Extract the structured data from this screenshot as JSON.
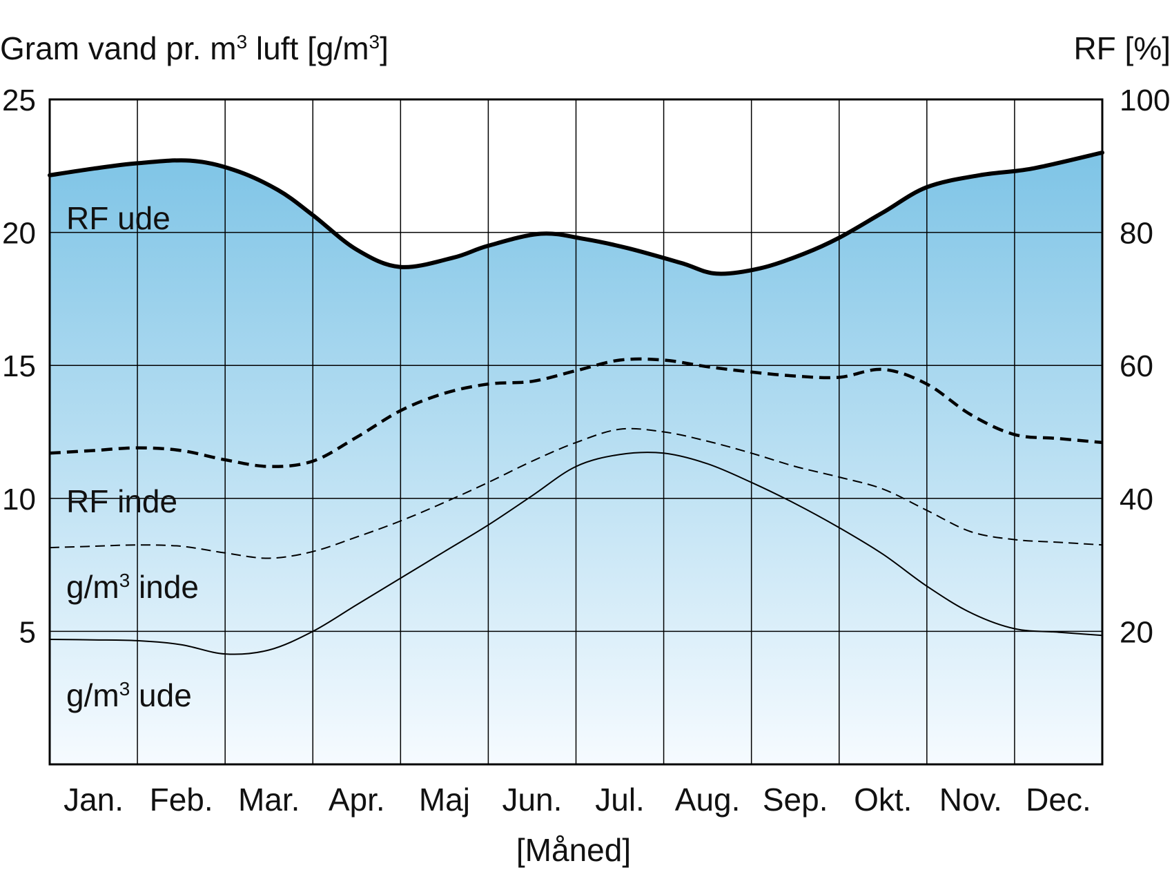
{
  "chart_data": {
    "type": "line",
    "left_axis_title": {
      "pre": "Gram vand pr. m",
      "sup1": "3",
      "mid": " luft [g/m",
      "sup2": "3",
      "post": "]"
    },
    "right_axis_title": "RF [%]",
    "xlabel": "[Måned]",
    "categories": [
      "Jan.",
      "Feb.",
      "Mar.",
      "Apr.",
      "Maj",
      "Jun.",
      "Jul.",
      "Aug.",
      "Sep.",
      "Okt.",
      "Nov.",
      "Dec."
    ],
    "left_axis": {
      "range": [
        0,
        25
      ],
      "ticks": [
        5,
        10,
        15,
        20,
        25
      ]
    },
    "right_axis": {
      "range": [
        0,
        100
      ],
      "ticks": [
        20,
        40,
        60,
        80,
        100
      ]
    },
    "grid": true,
    "area_fill": {
      "top_color": "#7ec4e6",
      "bottom_color": "#f6fbff"
    },
    "series": [
      {
        "name": "RF ude",
        "label_parts": {
          "pre": "RF ude"
        },
        "axis": "right",
        "style": "thick-solid",
        "points": [
          [
            0,
            88.6
          ],
          [
            0.5,
            89.6
          ],
          [
            1,
            90.4
          ],
          [
            1.6,
            90.8
          ],
          [
            2.1,
            89.4
          ],
          [
            2.6,
            86.4
          ],
          [
            3,
            82.6
          ],
          [
            3.5,
            77.4
          ],
          [
            4,
            74.8
          ],
          [
            4.6,
            76.2
          ],
          [
            5,
            78
          ],
          [
            5.6,
            79.8
          ],
          [
            6.1,
            79
          ],
          [
            6.6,
            77.6
          ],
          [
            7.2,
            75.4
          ],
          [
            7.6,
            73.8
          ],
          [
            8.1,
            74.6
          ],
          [
            8.6,
            76.8
          ],
          [
            9,
            79.2
          ],
          [
            9.5,
            83
          ],
          [
            10,
            86.8
          ],
          [
            10.6,
            88.6
          ],
          [
            11.2,
            89.6
          ],
          [
            12,
            92
          ]
        ]
      },
      {
        "name": "RF inde",
        "label_parts": {
          "pre": "RF inde"
        },
        "axis": "right",
        "style": "thick-dashed",
        "points": [
          [
            0,
            46.8
          ],
          [
            0.5,
            47.2
          ],
          [
            1,
            47.6
          ],
          [
            1.5,
            47.2
          ],
          [
            2,
            45.8
          ],
          [
            2.5,
            44.8
          ],
          [
            3,
            45.6
          ],
          [
            3.5,
            49.2
          ],
          [
            4,
            53.2
          ],
          [
            4.5,
            55.8
          ],
          [
            5,
            57.2
          ],
          [
            5.5,
            57.6
          ],
          [
            6,
            59.2
          ],
          [
            6.5,
            60.8
          ],
          [
            7,
            60.8
          ],
          [
            7.5,
            59.8
          ],
          [
            8,
            59
          ],
          [
            8.5,
            58.4
          ],
          [
            9,
            58.2
          ],
          [
            9.5,
            59.4
          ],
          [
            10,
            57.2
          ],
          [
            10.5,
            52.6
          ],
          [
            11,
            49.6
          ],
          [
            11.5,
            49
          ],
          [
            12,
            48.4
          ]
        ]
      },
      {
        "name": "g/m³ inde",
        "label_parts": {
          "pre": "g/m",
          "sup": "3",
          "post": " inde"
        },
        "axis": "left",
        "style": "thin-dashed",
        "points": [
          [
            0,
            8.15
          ],
          [
            0.5,
            8.2
          ],
          [
            1,
            8.25
          ],
          [
            1.5,
            8.2
          ],
          [
            2,
            7.95
          ],
          [
            2.5,
            7.75
          ],
          [
            3,
            8.0
          ],
          [
            3.5,
            8.55
          ],
          [
            4,
            9.15
          ],
          [
            4.5,
            9.85
          ],
          [
            5,
            10.6
          ],
          [
            5.5,
            11.4
          ],
          [
            6,
            12.1
          ],
          [
            6.5,
            12.6
          ],
          [
            7,
            12.5
          ],
          [
            7.5,
            12.15
          ],
          [
            8,
            11.7
          ],
          [
            8.5,
            11.2
          ],
          [
            9,
            10.8
          ],
          [
            9.5,
            10.35
          ],
          [
            10,
            9.55
          ],
          [
            10.5,
            8.75
          ],
          [
            11,
            8.45
          ],
          [
            11.5,
            8.35
          ],
          [
            12,
            8.25
          ]
        ]
      },
      {
        "name": "g/m³ ude",
        "label_parts": {
          "pre": "g/m",
          "sup": "3",
          "post": " ude"
        },
        "axis": "left",
        "style": "thin-solid",
        "points": [
          [
            0,
            4.7
          ],
          [
            0.5,
            4.68
          ],
          [
            1,
            4.65
          ],
          [
            1.5,
            4.5
          ],
          [
            2,
            4.15
          ],
          [
            2.5,
            4.3
          ],
          [
            3,
            5.0
          ],
          [
            3.5,
            6.0
          ],
          [
            4,
            7.0
          ],
          [
            4.5,
            8.0
          ],
          [
            5,
            9.0
          ],
          [
            5.5,
            10.1
          ],
          [
            6,
            11.2
          ],
          [
            6.5,
            11.65
          ],
          [
            7,
            11.7
          ],
          [
            7.5,
            11.3
          ],
          [
            8,
            10.6
          ],
          [
            8.5,
            9.8
          ],
          [
            9,
            8.9
          ],
          [
            9.5,
            7.9
          ],
          [
            10,
            6.7
          ],
          [
            10.5,
            5.7
          ],
          [
            11,
            5.1
          ],
          [
            11.5,
            4.97
          ],
          [
            12,
            4.85
          ]
        ]
      }
    ]
  }
}
